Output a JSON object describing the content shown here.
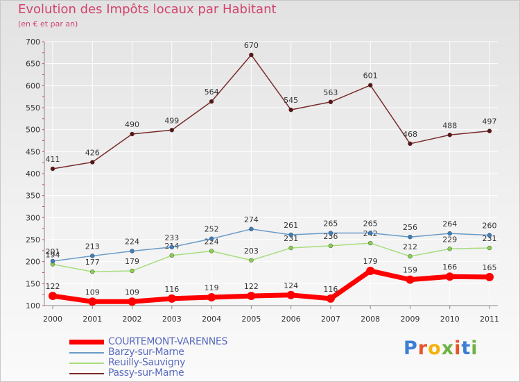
{
  "title": "Evolution des Impôts locaux par Habitant",
  "subtitle": "(en € et par an)",
  "brand": {
    "text": "Proxiti",
    "colors": [
      "#3a7fd5",
      "#e8542a",
      "#f2b30a",
      "#6db33f",
      "#e8542a",
      "#3a7fd5",
      "#6db33f"
    ]
  },
  "chart_data": {
    "type": "line",
    "title": "Evolution des Impôts locaux par Habitant",
    "subtitle": "(en € et par an)",
    "xlabel": "",
    "ylabel": "",
    "categories": [
      "2000",
      "2001",
      "2002",
      "2003",
      "2004",
      "2005",
      "2006",
      "2007",
      "2008",
      "2009",
      "2010",
      "2011"
    ],
    "ylim": [
      100,
      700
    ],
    "yticks": [
      100,
      150,
      200,
      250,
      300,
      350,
      400,
      450,
      500,
      550,
      600,
      650,
      700
    ],
    "grid": true,
    "legend_position": "bottom-left",
    "series": [
      {
        "name": "COURTEMONT-VARENNES",
        "color": "#ff0000",
        "marker_color": "#ff0000",
        "emphasis": true,
        "values": [
          122,
          109,
          109,
          116,
          119,
          122,
          124,
          116,
          179,
          159,
          166,
          165
        ],
        "labels": [
          "122",
          "109",
          "109",
          "116",
          "119",
          "122",
          "124",
          "116",
          "179",
          "159",
          "166",
          "165"
        ]
      },
      {
        "name": "Barzy-sur-Marne",
        "color": "#6a9bc7",
        "marker_color": "#3a7fc0",
        "emphasis": false,
        "values": [
          201,
          213,
          224,
          233,
          252,
          274,
          261,
          265,
          265,
          256,
          264,
          260
        ],
        "labels": [
          "201",
          "213",
          "224",
          "233",
          "252",
          "274",
          "261",
          "265",
          "265",
          "256",
          "264",
          "260"
        ]
      },
      {
        "name": "Reuilly-Sauvigny",
        "color": "#a6dd7c",
        "marker_color": "#88d04f",
        "emphasis": false,
        "values": [
          194,
          177,
          179,
          214,
          224,
          203,
          231,
          236,
          242,
          212,
          229,
          231
        ],
        "labels": [
          "194",
          "177",
          "179",
          "214",
          "224",
          "203",
          "231",
          "236",
          "242",
          "212",
          "229",
          "231"
        ]
      },
      {
        "name": "Passy-sur-Marne",
        "color": "#7a2a2a",
        "marker_color": "#5c1414",
        "emphasis": false,
        "values": [
          411,
          426,
          490,
          499,
          564,
          670,
          545,
          563,
          601,
          468,
          488,
          497
        ],
        "labels": [
          "411",
          "426",
          "490",
          "499",
          "564",
          "670",
          "545",
          "563",
          "601",
          "468",
          "488",
          "497"
        ]
      }
    ]
  }
}
